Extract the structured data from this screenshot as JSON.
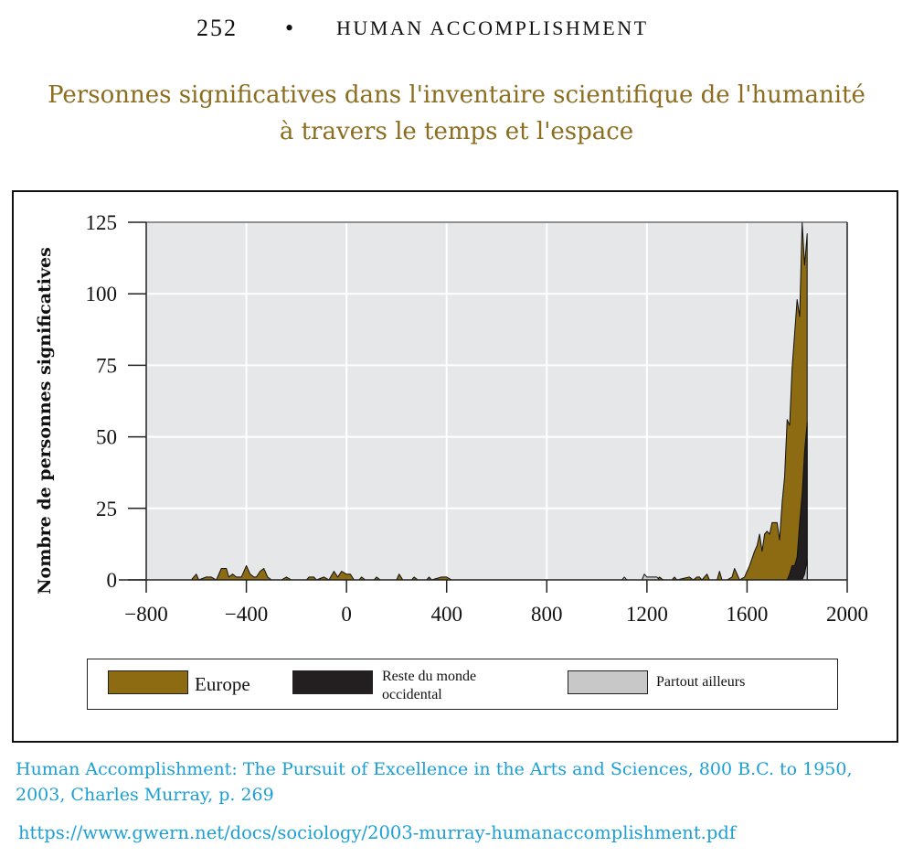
{
  "header": {
    "page_number": "252",
    "separator": "•",
    "book_title": "HUMAN ACCOMPLISHMENT"
  },
  "title_line1": "Personnes significatives dans l'inventaire scientifique de l'humanité",
  "title_line2": "à travers le temps et l'espace",
  "caption_line1": "Human Accomplishment: The Pursuit of Excellence in the Arts and Sciences, 800 B.C. to 1950,",
  "caption_line2": "2003, Charles Murray, p. 269",
  "url": "https://www.gwern.net/docs/sociology/2003-murray-humanaccomplishment.pdf",
  "colors": {
    "europe": "#8c6b12",
    "rest_of_west": "#231f20",
    "elsewhere": "#c8c8c8",
    "plot_bg": "#e6e7e8",
    "grid": "#ffffff",
    "title": "#8c6d1f",
    "caption": "#1a9fd6"
  },
  "chart_data": {
    "type": "area",
    "stacked": true,
    "title": "",
    "xlabel": "",
    "ylabel": "Nombre de personnes significatives",
    "xlim": [
      -800,
      2000
    ],
    "ylim": [
      0,
      125
    ],
    "xticks": [
      -800,
      -400,
      0,
      400,
      800,
      1200,
      1600,
      2000
    ],
    "xtick_labels": [
      "−800",
      "−400",
      "0",
      "400",
      "800",
      "1200",
      "1600",
      "2000"
    ],
    "yticks": [
      0,
      25,
      50,
      75,
      100,
      125
    ],
    "ytick_labels": [
      "0",
      "25",
      "50",
      "75",
      "100",
      "125"
    ],
    "grid": true,
    "legend_position": "below",
    "series": [
      {
        "name": "Europe",
        "color": "#8c6b12",
        "points": [
          [
            -800,
            0
          ],
          [
            -620,
            0
          ],
          [
            -600,
            2
          ],
          [
            -590,
            0
          ],
          [
            -560,
            1
          ],
          [
            -540,
            1
          ],
          [
            -520,
            0
          ],
          [
            -500,
            4
          ],
          [
            -480,
            4
          ],
          [
            -470,
            1
          ],
          [
            -455,
            2
          ],
          [
            -440,
            1
          ],
          [
            -420,
            1
          ],
          [
            -400,
            5
          ],
          [
            -385,
            2
          ],
          [
            -370,
            1
          ],
          [
            -360,
            1
          ],
          [
            -345,
            3
          ],
          [
            -330,
            4
          ],
          [
            -315,
            1
          ],
          [
            -300,
            0
          ],
          [
            -260,
            0
          ],
          [
            -240,
            1
          ],
          [
            -220,
            0
          ],
          [
            -160,
            0
          ],
          [
            -150,
            1
          ],
          [
            -130,
            1
          ],
          [
            -120,
            0
          ],
          [
            -90,
            1
          ],
          [
            -70,
            0
          ],
          [
            -50,
            3
          ],
          [
            -35,
            1
          ],
          [
            -20,
            3
          ],
          [
            0,
            2
          ],
          [
            15,
            2
          ],
          [
            30,
            0
          ],
          [
            50,
            0
          ],
          [
            60,
            1
          ],
          [
            75,
            0
          ],
          [
            110,
            0
          ],
          [
            120,
            1
          ],
          [
            135,
            0
          ],
          [
            200,
            0
          ],
          [
            210,
            2
          ],
          [
            225,
            0
          ],
          [
            260,
            0
          ],
          [
            270,
            1
          ],
          [
            285,
            0
          ],
          [
            320,
            0
          ],
          [
            330,
            1
          ],
          [
            340,
            0
          ],
          [
            380,
            1
          ],
          [
            400,
            1
          ],
          [
            420,
            0
          ],
          [
            1240,
            0
          ],
          [
            1250,
            1
          ],
          [
            1265,
            0
          ],
          [
            1300,
            0
          ],
          [
            1310,
            1
          ],
          [
            1320,
            0
          ],
          [
            1370,
            1
          ],
          [
            1385,
            0
          ],
          [
            1400,
            1
          ],
          [
            1410,
            1
          ],
          [
            1420,
            0
          ],
          [
            1440,
            2
          ],
          [
            1450,
            0
          ],
          [
            1480,
            0
          ],
          [
            1490,
            3
          ],
          [
            1500,
            0
          ],
          [
            1520,
            0
          ],
          [
            1540,
            1
          ],
          [
            1550,
            4
          ],
          [
            1560,
            2
          ],
          [
            1570,
            0
          ],
          [
            1590,
            1
          ],
          [
            1600,
            3
          ],
          [
            1610,
            5
          ],
          [
            1630,
            10
          ],
          [
            1640,
            12
          ],
          [
            1650,
            16
          ],
          [
            1660,
            10
          ],
          [
            1670,
            16
          ],
          [
            1680,
            17
          ],
          [
            1690,
            16
          ],
          [
            1700,
            20
          ],
          [
            1710,
            20
          ],
          [
            1720,
            20
          ],
          [
            1730,
            14
          ],
          [
            1740,
            27
          ],
          [
            1750,
            36
          ],
          [
            1760,
            56
          ],
          [
            1770,
            54
          ],
          [
            1780,
            74
          ],
          [
            1800,
            98
          ],
          [
            1810,
            92
          ],
          [
            1820,
            125
          ],
          [
            1830,
            110
          ],
          [
            1840,
            121
          ],
          [
            1840,
            0
          ]
        ]
      },
      {
        "name": "Reste du monde occidental",
        "color": "#231f20",
        "points": [
          [
            1760,
            0
          ],
          [
            1770,
            2
          ],
          [
            1780,
            5
          ],
          [
            1790,
            5
          ],
          [
            1800,
            8
          ],
          [
            1810,
            20
          ],
          [
            1820,
            30
          ],
          [
            1830,
            45
          ],
          [
            1840,
            55
          ],
          [
            1840,
            0
          ]
        ]
      },
      {
        "name": "Partout ailleurs",
        "color": "#c8c8c8",
        "points": [
          [
            -800,
            0
          ],
          [
            1100,
            0
          ],
          [
            1110,
            1
          ],
          [
            1120,
            0
          ],
          [
            1180,
            0
          ],
          [
            1190,
            2
          ],
          [
            1200,
            1
          ],
          [
            1240,
            1
          ],
          [
            1250,
            0
          ],
          [
            1820,
            0
          ],
          [
            1830,
            2
          ],
          [
            1840,
            7
          ],
          [
            1840,
            0
          ]
        ]
      }
    ]
  }
}
